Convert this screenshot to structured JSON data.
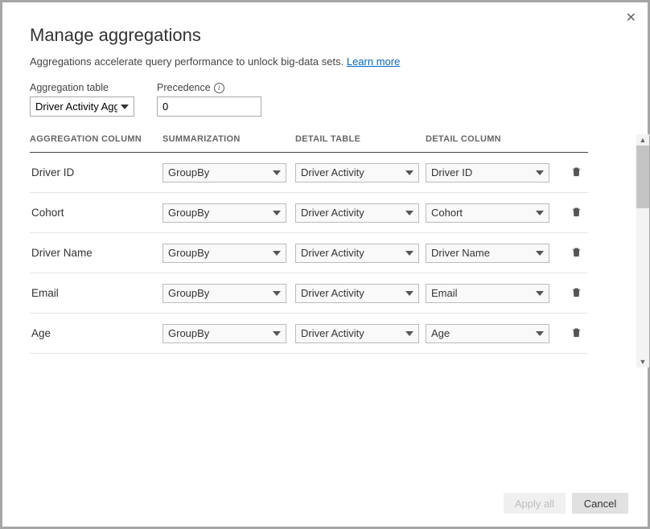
{
  "dialog": {
    "title": "Manage aggregations",
    "subtitle_text": "Aggregations accelerate query performance to unlock big-data sets. ",
    "learn_more": "Learn more"
  },
  "controls": {
    "agg_table_label": "Aggregation table",
    "agg_table_value": "Driver Activity Agg",
    "precedence_label": "Precedence",
    "precedence_value": "0"
  },
  "headers": {
    "agg_col": "AGGREGATION COLUMN",
    "summ": "SUMMARIZATION",
    "detail_table": "DETAIL TABLE",
    "detail_col": "DETAIL COLUMN"
  },
  "rows": [
    {
      "agg": "Driver ID",
      "summ": "GroupBy",
      "dtable": "Driver Activity",
      "dcol": "Driver ID"
    },
    {
      "agg": "Cohort",
      "summ": "GroupBy",
      "dtable": "Driver Activity",
      "dcol": "Cohort"
    },
    {
      "agg": "Driver Name",
      "summ": "GroupBy",
      "dtable": "Driver Activity",
      "dcol": "Driver Name"
    },
    {
      "agg": "Email",
      "summ": "GroupBy",
      "dtable": "Driver Activity",
      "dcol": "Email"
    },
    {
      "agg": "Age",
      "summ": "GroupBy",
      "dtable": "Driver Activity",
      "dcol": "Age"
    }
  ],
  "footer": {
    "apply": "Apply all",
    "cancel": "Cancel"
  }
}
